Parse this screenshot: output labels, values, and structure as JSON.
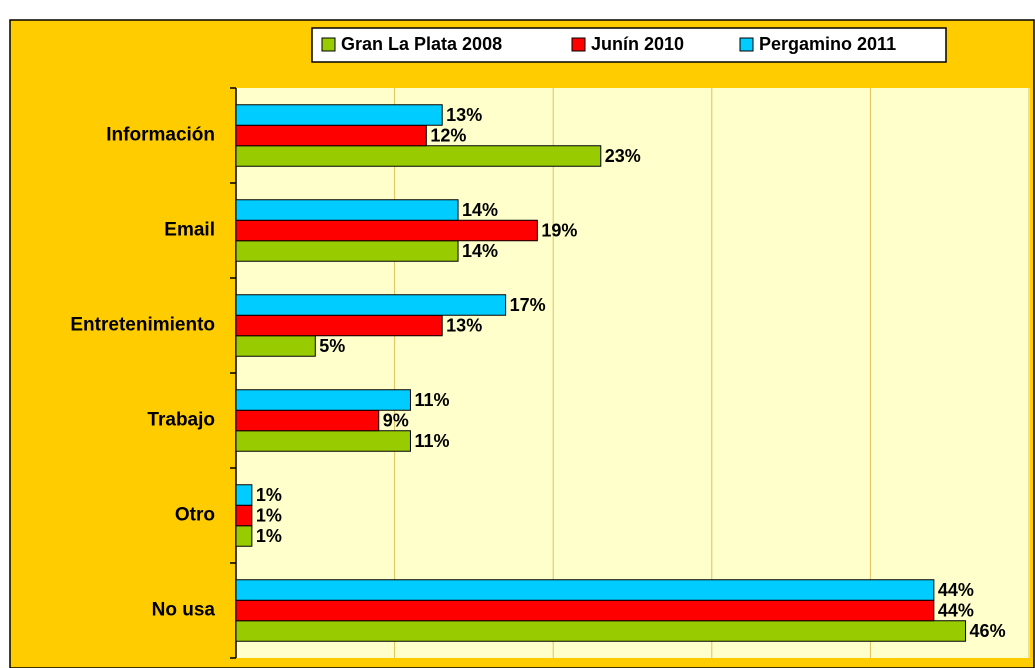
{
  "chart_data": {
    "type": "hbar",
    "categories": [
      "Información",
      "Email",
      "Entretenimiento",
      "Trabajo",
      "Otro",
      "No usa"
    ],
    "series": [
      {
        "name": "Gran La Plata 2008",
        "color": "#99cc00",
        "values": [
          23,
          14,
          5,
          11,
          1,
          46
        ],
        "value_labels": [
          "23%",
          "14%",
          "5%",
          "11%",
          "1%",
          "46%"
        ]
      },
      {
        "name": "Junín 2010",
        "color": "#ff0000",
        "values": [
          12,
          19,
          13,
          9,
          1,
          44
        ],
        "value_labels": [
          "12%",
          "19%",
          "13%",
          "9%",
          "1%",
          "44%"
        ]
      },
      {
        "name": "Pergamino 2011",
        "color": "#00ccff",
        "values": [
          13,
          14,
          17,
          11,
          1,
          44
        ],
        "value_labels": [
          "13%",
          "14%",
          "17%",
          "11%",
          "1%",
          "44%"
        ]
      }
    ],
    "xlim": [
      0,
      50
    ],
    "xticks": [
      0,
      10,
      20,
      30,
      40,
      50
    ],
    "grid": true
  }
}
